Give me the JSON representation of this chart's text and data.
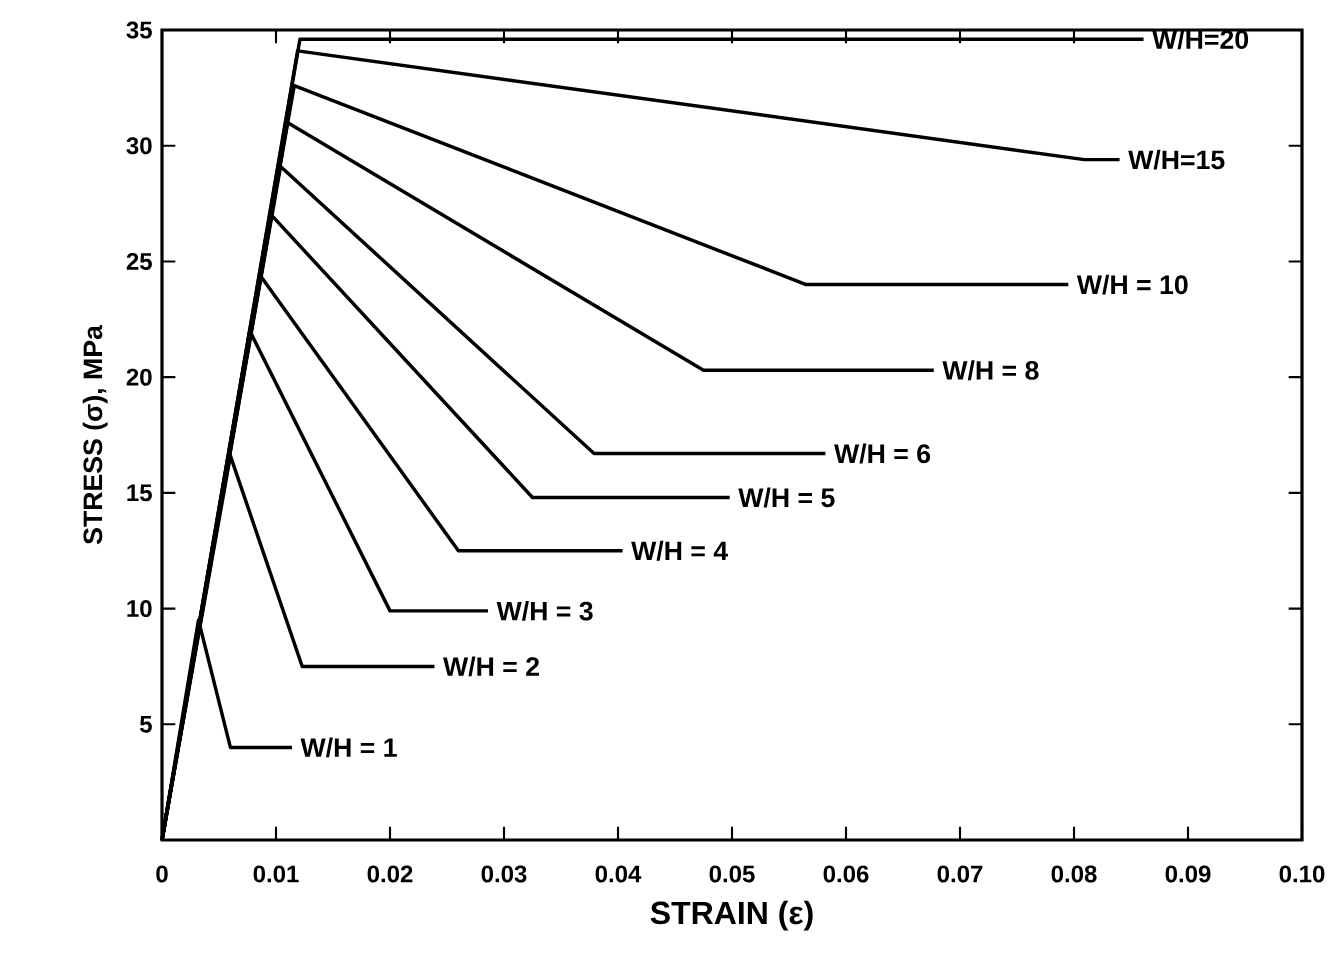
{
  "chart_data": {
    "type": "line",
    "xlabel": "STRAIN (ε)",
    "ylabel": "STRESS (σ), MPa",
    "xlim": [
      0,
      0.1
    ],
    "ylim": [
      0,
      35
    ],
    "xticks": [
      0,
      0.01,
      0.02,
      0.03,
      0.04,
      0.05,
      0.06,
      0.07,
      0.08,
      0.09,
      {
        "value": 0.1,
        "label": "0.10"
      }
    ],
    "yticks": [
      {
        "value": 0,
        "label": null
      },
      5,
      10,
      15,
      20,
      25,
      30,
      35
    ],
    "grid": false,
    "marker": "none",
    "line_style": "solid",
    "series": [
      {
        "name": "W/H = 1",
        "color": "#000000",
        "x": [
          0,
          0.0032,
          0.006,
          0.0114
        ],
        "values": [
          0,
          9.5,
          4.0,
          4.0
        ]
      },
      {
        "name": "W/H = 2",
        "color": "#000000",
        "x": [
          0,
          0.006,
          0.0123,
          0.0239
        ],
        "values": [
          0,
          16.6,
          7.5,
          7.5
        ]
      },
      {
        "name": "W/H = 3",
        "color": "#000000",
        "x": [
          0,
          0.0077,
          0.02,
          0.0286
        ],
        "values": [
          0,
          22.0,
          9.9,
          9.9
        ]
      },
      {
        "name": "W/H = 4",
        "color": "#000000",
        "x": [
          0,
          0.0086,
          0.026,
          0.0404
        ],
        "values": [
          0,
          24.4,
          12.5,
          12.5
        ]
      },
      {
        "name": "W/H = 5",
        "color": "#000000",
        "x": [
          0,
          0.0096,
          0.0325,
          0.0498
        ],
        "values": [
          0,
          27.0,
          14.8,
          14.8
        ]
      },
      {
        "name": "W/H = 6",
        "color": "#000000",
        "x": [
          0,
          0.0104,
          0.0379,
          0.0582
        ],
        "values": [
          0,
          29.1,
          16.7,
          16.7
        ]
      },
      {
        "name": "W/H = 8",
        "color": "#000000",
        "x": [
          0,
          0.011,
          0.0475,
          0.0677
        ],
        "values": [
          0,
          31.0,
          20.3,
          20.3
        ]
      },
      {
        "name": "W/H = 10",
        "color": "#000000",
        "x": [
          0,
          0.0116,
          0.0565,
          0.0795
        ],
        "values": [
          0,
          32.6,
          24.0,
          24.0
        ]
      },
      {
        "name": "W/H=15",
        "color": "#000000",
        "x": [
          0,
          0.0119,
          0.0809,
          0.084
        ],
        "values": [
          0,
          34.1,
          29.4,
          29.4
        ]
      },
      {
        "name": "W/H=20",
        "color": "#000000",
        "x": [
          0,
          0.0121,
          0.0861
        ],
        "values": [
          0,
          34.6,
          34.6
        ]
      }
    ]
  }
}
